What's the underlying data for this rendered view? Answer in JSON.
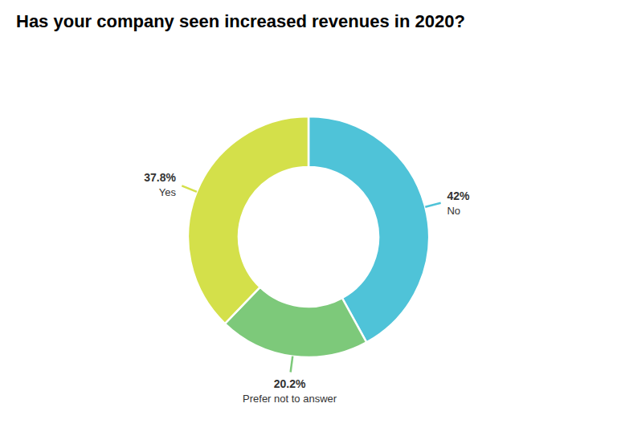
{
  "chart_data": {
    "type": "donut",
    "title": "Has your company seen increased revenues in 2020?",
    "categories": [
      "No",
      "Prefer not to answer",
      "Yes"
    ],
    "values": [
      42.0,
      20.2,
      37.8
    ],
    "value_labels": [
      "42%",
      "20.2%",
      "37.8%"
    ],
    "colors": [
      "#4FC3D8",
      "#7DC97A",
      "#D4E04A"
    ],
    "data_labels": true
  }
}
